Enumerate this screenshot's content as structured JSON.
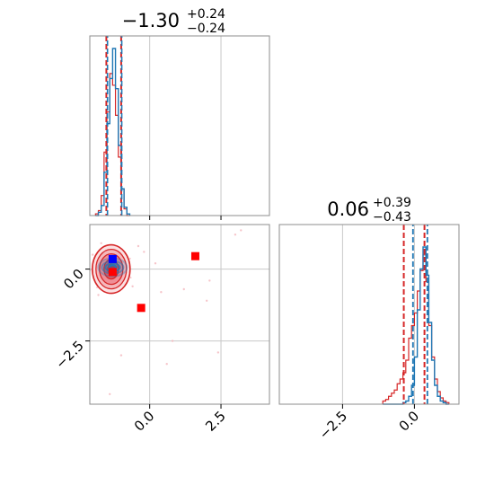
{
  "chart_data": {
    "type": "corner",
    "colors": {
      "primary": "#1f77b4",
      "secondary": "#d62728",
      "point_red": "#ff0000",
      "point_blue": "#0000ff",
      "grid": "#c8c8c8",
      "frame": "#8c8c8c"
    },
    "panel_hist_x": {
      "title": {
        "main": "−1.30",
        "sup": "+0.24",
        "sub": "−0.24"
      },
      "xlim": [
        -2.1,
        4.2
      ],
      "grid_x": [
        0.0,
        2.5
      ],
      "x_ticks": [],
      "quantile_lines": {
        "primary": [
          -1.48,
          -0.98
        ],
        "secondary": [
          -1.52,
          -1.0
        ]
      },
      "bins": [
        -1.9,
        -1.8,
        -1.7,
        -1.6,
        -1.5,
        -1.4,
        -1.3,
        -1.2,
        -1.1,
        -1.0,
        -0.9,
        -0.8,
        -0.7
      ],
      "primary_hist": [
        0.0,
        0.02,
        0.06,
        0.26,
        0.55,
        0.82,
        1.0,
        0.76,
        0.42,
        0.16,
        0.05,
        0.01
      ],
      "secondary_hist": [
        0.01,
        0.03,
        0.12,
        0.38,
        0.62,
        0.85,
        0.78,
        0.6,
        0.35,
        0.16,
        0.04,
        0.0
      ]
    },
    "panel_scatter": {
      "xlim": [
        -2.1,
        4.2
      ],
      "ylim": [
        -4.7,
        1.55
      ],
      "grid_x": [
        0.0,
        2.5
      ],
      "grid_y": [
        0.0,
        -2.5
      ],
      "x_ticks": [
        0.0,
        2.5
      ],
      "x_tick_labels": [
        "0.0",
        "2.5"
      ],
      "y_ticks": [
        0.0,
        -2.5
      ],
      "y_tick_labels": [
        "0.0",
        "−2.5"
      ],
      "primary_density_center": [
        -1.3,
        0.06
      ],
      "secondary_density_center": [
        -1.35,
        0.0
      ],
      "red_markers": [
        [
          -1.3,
          -0.1
        ],
        [
          1.6,
          0.45
        ],
        [
          -0.3,
          -1.35
        ]
      ],
      "blue_markers": [
        [
          -1.3,
          0.35
        ]
      ],
      "scatter_points": [
        [
          3.0,
          1.2
        ],
        [
          3.2,
          1.35
        ],
        [
          2.1,
          -0.4
        ],
        [
          1.2,
          -0.7
        ],
        [
          0.4,
          -0.8
        ],
        [
          2.0,
          -1.1
        ],
        [
          0.8,
          -2.5
        ],
        [
          2.4,
          -2.9
        ],
        [
          0.6,
          -3.3
        ],
        [
          -1.4,
          -4.35
        ],
        [
          -1.0,
          -3.0
        ],
        [
          -0.4,
          0.8
        ],
        [
          -0.6,
          -0.6
        ],
        [
          -1.8,
          -0.9
        ],
        [
          -0.2,
          0.6
        ],
        [
          0.2,
          0.2
        ],
        [
          -1.7,
          0.9
        ],
        [
          -2.0,
          0.5
        ]
      ]
    },
    "panel_hist_y": {
      "title": {
        "main": "0.06",
        "sup": "+0.39",
        "sub": "−0.43"
      },
      "xlim": [
        -4.7,
        1.55
      ],
      "grid_x": [
        -2.5,
        0.0
      ],
      "x_ticks": [
        -2.5,
        0.0
      ],
      "x_tick_labels": [
        "−2.5",
        "0.0"
      ],
      "quantile_lines": {
        "primary": [
          -0.05,
          0.45
        ],
        "secondary": [
          -0.37,
          0.35
        ]
      },
      "bins": [
        -1.1,
        -1.0,
        -0.9,
        -0.8,
        -0.7,
        -0.6,
        -0.5,
        -0.4,
        -0.3,
        -0.2,
        -0.1,
        0.0,
        0.1,
        0.2,
        0.3,
        0.4,
        0.5,
        0.6,
        0.7,
        0.8,
        0.9,
        1.0,
        1.1,
        1.2
      ],
      "primary_hist": [
        0.0,
        0.0,
        0.0,
        0.0,
        0.0,
        0.0,
        0.0,
        0.01,
        0.02,
        0.05,
        0.12,
        0.3,
        0.6,
        0.86,
        1.0,
        0.82,
        0.52,
        0.28,
        0.12,
        0.05,
        0.02,
        0.01,
        0.0
      ],
      "secondary_hist": [
        0.02,
        0.03,
        0.05,
        0.07,
        0.09,
        0.13,
        0.16,
        0.2,
        0.28,
        0.42,
        0.5,
        0.58,
        0.72,
        0.85,
        0.95,
        0.78,
        0.5,
        0.3,
        0.16,
        0.08,
        0.04,
        0.02,
        0.01
      ]
    }
  }
}
